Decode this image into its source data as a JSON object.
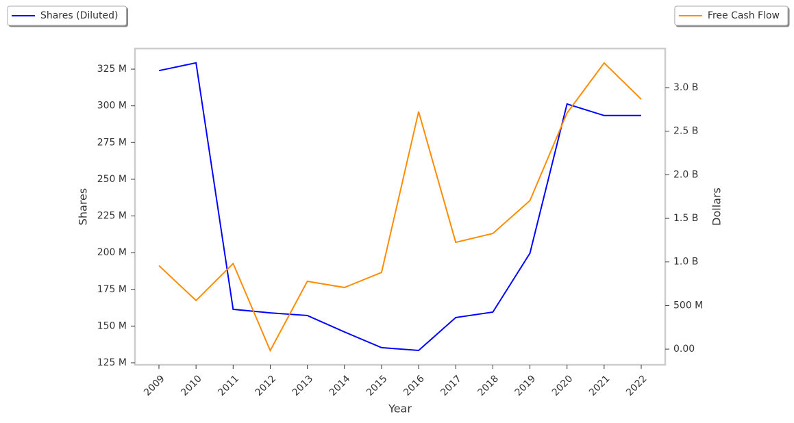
{
  "chart_data": {
    "type": "line",
    "x_label": "Year",
    "y_label": "Shares",
    "y2_label": "Dollars",
    "categories": [
      "2009",
      "2010",
      "2011",
      "2012",
      "2013",
      "2014",
      "2015",
      "2016",
      "2017",
      "2018",
      "2019",
      "2020",
      "2021",
      "2022"
    ],
    "series": [
      {
        "name": "Shares (Diluted)",
        "color": "#0000ff",
        "axis": "y",
        "legend": "top-left",
        "values": [
          324000000,
          329300000,
          161400000,
          159000000,
          157200000,
          146000000,
          135300000,
          133400000,
          155800000,
          159500000,
          199600000,
          301300000,
          293400000,
          293400000
        ]
      },
      {
        "name": "Free Cash Flow",
        "color": "#ff8c00",
        "axis": "y2",
        "legend": "top-right",
        "values": [
          958000000,
          558000000,
          982000000,
          -16000000,
          778000000,
          707000000,
          880000000,
          2725000000,
          1225000000,
          1327000000,
          1704000000,
          2709000000,
          3283000000,
          2867000000
        ]
      }
    ],
    "ylim": [
      123600000,
      339000000
    ],
    "yticks": [
      {
        "value": 125000000,
        "label": "125 M"
      },
      {
        "value": 150000000,
        "label": "150 M"
      },
      {
        "value": 175000000,
        "label": "175 M"
      },
      {
        "value": 200000000,
        "label": "200 M"
      },
      {
        "value": 225000000,
        "label": "225 M"
      },
      {
        "value": 250000000,
        "label": "250 M"
      },
      {
        "value": 275000000,
        "label": "275 M"
      },
      {
        "value": 300000000,
        "label": "300 M"
      },
      {
        "value": 325000000,
        "label": "325 M"
      }
    ],
    "y2lim": [
      -180000000,
      3448000000
    ],
    "y2ticks": [
      {
        "value": 0,
        "label": "0.00"
      },
      {
        "value": 500000000,
        "label": "500 M"
      },
      {
        "value": 1000000000,
        "label": "1.0 B"
      },
      {
        "value": 1500000000,
        "label": "1.5 B"
      },
      {
        "value": 2000000000,
        "label": "2.0 B"
      },
      {
        "value": 2500000000,
        "label": "2.5 B"
      },
      {
        "value": 3000000000,
        "label": "3.0 B"
      }
    ],
    "grid": false
  }
}
